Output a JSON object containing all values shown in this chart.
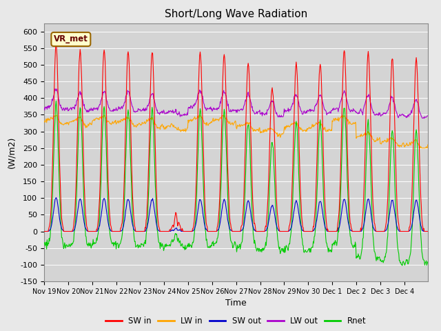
{
  "title": "Short/Long Wave Radiation",
  "xlabel": "Time",
  "ylabel": "(W/m2)",
  "ylim": [
    -150,
    625
  ],
  "yticks": [
    -150,
    -100,
    -50,
    0,
    50,
    100,
    150,
    200,
    250,
    300,
    350,
    400,
    450,
    500,
    550,
    600
  ],
  "plot_bg_color": "#d4d4d4",
  "fig_bg_color": "#e8e8e8",
  "site_label": "VR_met",
  "legend_entries": [
    "SW in",
    "LW in",
    "SW out",
    "LW out",
    "Rnet"
  ],
  "line_colors": {
    "SW_in": "#ff0000",
    "LW_in": "#ffa500",
    "SW_out": "#0000cc",
    "LW_out": "#aa00cc",
    "Rnet": "#00cc00"
  },
  "n_days": 16,
  "xtick_labels": [
    "Nov 19",
    "Nov 20",
    "Nov 21",
    "Nov 22",
    "Nov 23",
    "Nov 24",
    "Nov 25",
    "Nov 26",
    "Nov 27",
    "Nov 28",
    "Nov 29",
    "Nov 30",
    "Dec 1",
    "Dec 2",
    "Dec 3",
    "Dec 4"
  ],
  "xtick_positions": [
    0,
    48,
    96,
    144,
    192,
    240,
    288,
    336,
    384,
    432,
    480,
    528,
    576,
    624,
    672,
    720
  ]
}
